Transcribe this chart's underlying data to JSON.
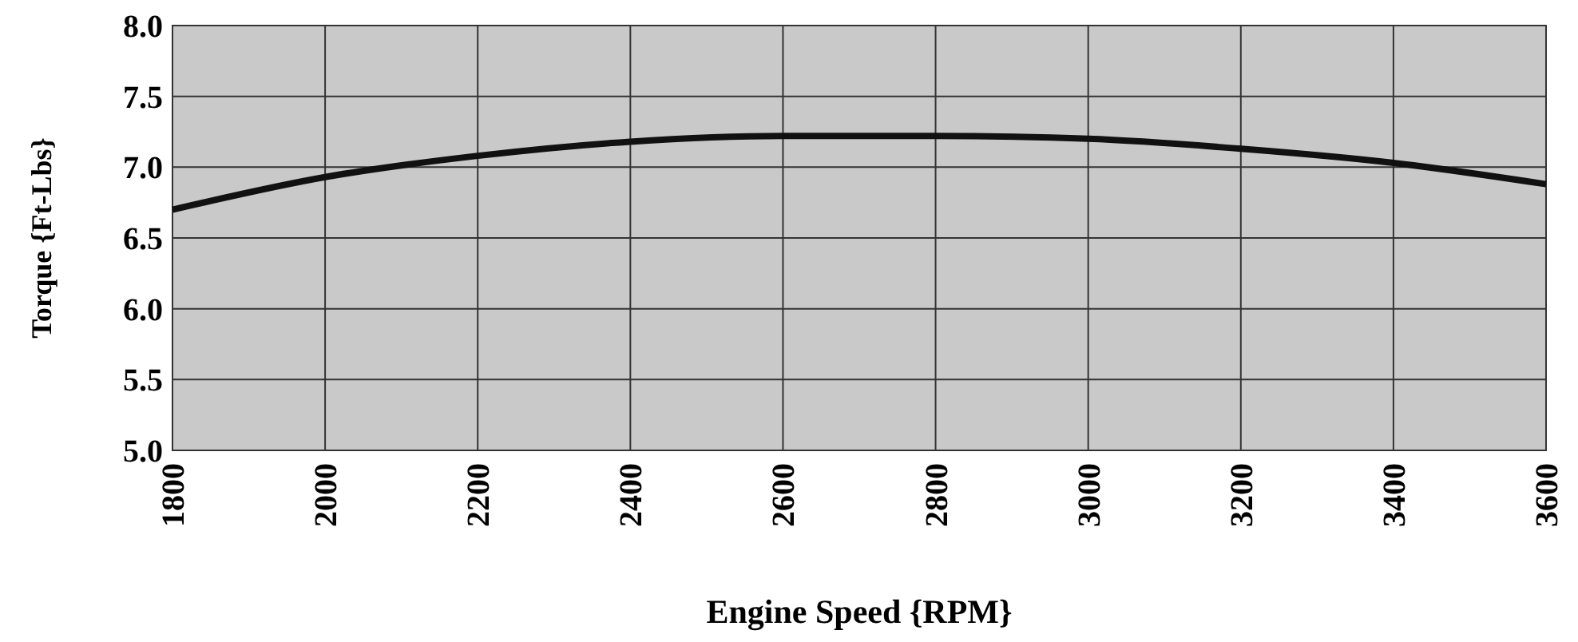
{
  "chart_data": {
    "type": "line",
    "xlabel": "Engine Speed {RPM}",
    "ylabel": "Torque {Ft-Lbs}",
    "x": [
      1800,
      2000,
      2200,
      2400,
      2600,
      2800,
      3000,
      3200,
      3400,
      3600
    ],
    "series": [
      {
        "color": "#111111",
        "values": [
          6.7,
          6.93,
          7.08,
          7.18,
          7.22,
          7.22,
          7.2,
          7.13,
          7.03,
          6.88
        ]
      }
    ],
    "xlim": [
      1800,
      3600
    ],
    "xticks": [
      1800,
      2000,
      2200,
      2400,
      2600,
      2800,
      3000,
      3200,
      3400,
      3600
    ],
    "ylim": [
      5,
      8
    ],
    "yticks": [
      {
        "value": 5,
        "label": "5.0"
      },
      {
        "value": 5.5,
        "label": "5.5"
      },
      {
        "value": 6,
        "label": "6.0"
      },
      {
        "value": 6.5,
        "label": "6.5"
      },
      {
        "value": 7,
        "label": "7.0"
      },
      {
        "value": 7.5,
        "label": "7.5"
      },
      {
        "value": 8,
        "label": "8.0"
      }
    ],
    "grid": true,
    "marker": "none",
    "line_style": "solid"
  }
}
